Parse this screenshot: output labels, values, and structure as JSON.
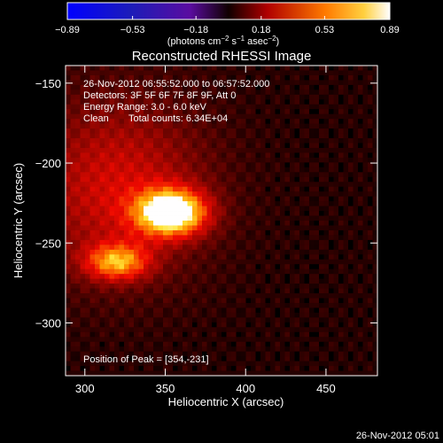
{
  "colorbar": {
    "ticks": [
      "-0.89",
      "-0.53",
      "-0.18",
      "0.18",
      "0.53",
      "0.89"
    ],
    "tick_values": [
      -0.89,
      -0.53,
      -0.18,
      0.18,
      0.53,
      0.89
    ],
    "range": [
      -0.89,
      0.89
    ],
    "units_prefix": "(photons cm",
    "units_exp1": "−2",
    "units_mid": " s",
    "units_exp2": "−1",
    "units_mid2": " asec",
    "units_exp3": "−2",
    "units_suffix": ")"
  },
  "chart_data": {
    "type": "heatmap",
    "title": "Reconstructed RHESSI Image",
    "xlabel": "Heliocentric X (arcsec)",
    "ylabel": "Heliocentric Y (arcsec)",
    "xlim": [
      288,
      482
    ],
    "ylim": [
      -333,
      -139
    ],
    "x_ticks": [
      300,
      350,
      400,
      450
    ],
    "x_tick_labels": [
      "300",
      "350",
      "400",
      "450"
    ],
    "y_ticks": [
      -150,
      -200,
      -250,
      -300
    ],
    "y_tick_labels": [
      "−150",
      "−200",
      "−250",
      "−300"
    ],
    "colormap": "red-temperature",
    "sources": [
      {
        "x": 354,
        "y": -231,
        "sx": 15,
        "sy": 10,
        "amp": 0.89
      },
      {
        "x": 320,
        "y": -262,
        "sx": 14,
        "sy": 8,
        "amp": 0.55
      },
      {
        "x": 320,
        "y": -215,
        "sx": 40,
        "sy": 40,
        "amp": 0.35
      }
    ],
    "peak": [
      354,
      -231
    ],
    "annotations": {
      "time_range": "26-Nov-2012 06:55:52.000 to 06:57:52.000",
      "detectors": "Detectors: 3F 5F 6F 7F 8F 9F, Att 0",
      "energy": "Energy Range: 3.0 - 6.0 keV",
      "method": "Clean",
      "counts": "Total counts: 6.34E+04",
      "peak_label": "Position of Peak = [354,-231]"
    }
  },
  "footer": {
    "timestamp": "26-Nov-2012 05:01"
  }
}
